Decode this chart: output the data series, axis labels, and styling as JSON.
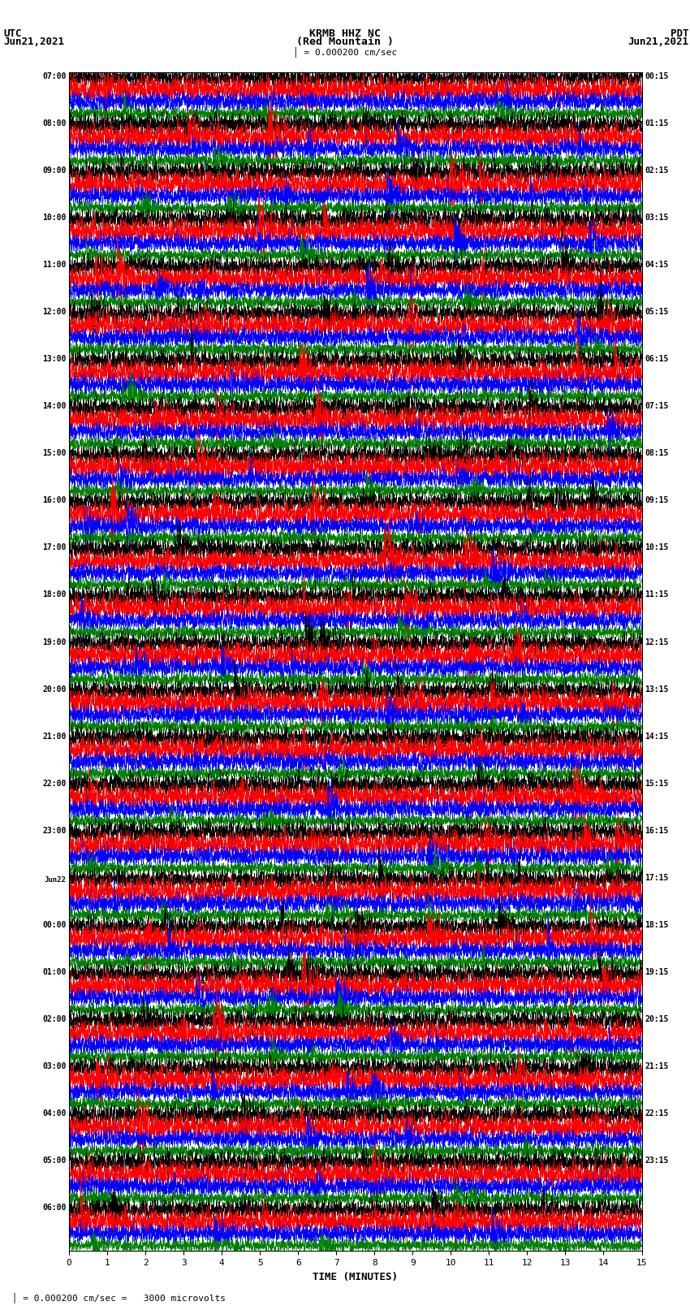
{
  "title_line1": "KRMB HHZ NC",
  "title_line2": "(Red Mountain )",
  "scale_text": "= 0.000200 cm/sec",
  "label_left_line1": "UTC",
  "label_left_line2": "Jun21,2021",
  "label_right_line1": "PDT",
  "label_right_line2": "Jun21,2021",
  "bottom_label": "TIME (MINUTES)",
  "bottom_note": "= 0.000200 cm/sec =   3000 microvolts",
  "xlim": [
    0,
    15
  ],
  "xticks": [
    0,
    1,
    2,
    3,
    4,
    5,
    6,
    7,
    8,
    9,
    10,
    11,
    12,
    13,
    14,
    15
  ],
  "colors": [
    "black",
    "red",
    "blue",
    "green"
  ],
  "left_times": [
    "07:00",
    "08:00",
    "09:00",
    "10:00",
    "11:00",
    "12:00",
    "13:00",
    "14:00",
    "15:00",
    "16:00",
    "17:00",
    "18:00",
    "19:00",
    "20:00",
    "21:00",
    "22:00",
    "23:00",
    "Jun22",
    "00:00",
    "01:00",
    "02:00",
    "03:00",
    "04:00",
    "05:00",
    "06:00"
  ],
  "right_times": [
    "00:15",
    "01:15",
    "02:15",
    "03:15",
    "04:15",
    "05:15",
    "06:15",
    "07:15",
    "08:15",
    "09:15",
    "10:15",
    "11:15",
    "12:15",
    "13:15",
    "14:15",
    "15:15",
    "16:15",
    "17:15",
    "18:15",
    "19:15",
    "20:15",
    "21:15",
    "22:15",
    "23:15"
  ],
  "n_rows": 25,
  "traces_per_row": 4,
  "fig_width": 8.5,
  "fig_height": 16.13,
  "bg_color": "white",
  "noise_seed": 42
}
